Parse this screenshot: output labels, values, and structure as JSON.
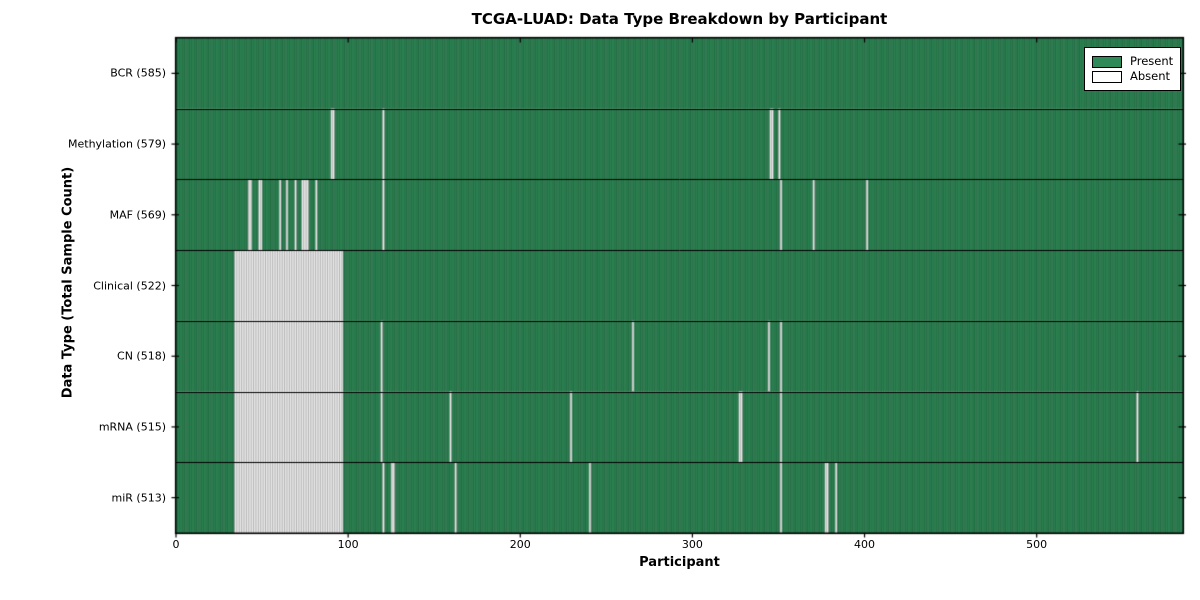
{
  "chart_data": {
    "type": "heatmap",
    "title": "TCGA-LUAD: Data Type Breakdown by Participant",
    "xlabel": "Participant",
    "ylabel": "Data Type (Total Sample Count)",
    "x_ticks": [
      0,
      100,
      200,
      300,
      400,
      500
    ],
    "x_range": [
      0,
      585
    ],
    "n_participants": 585,
    "grid": "off",
    "legend_position": "upper right",
    "legend": [
      {
        "label": "Present",
        "color": "#2E8B57"
      },
      {
        "label": "Absent",
        "color": "#FFFFFF"
      }
    ],
    "rows": [
      {
        "label": "BCR",
        "total": 585,
        "absent_singles": [],
        "absent_ranges": []
      },
      {
        "label": "Methylation",
        "total": 579,
        "absent_singles": [
          90,
          91,
          120,
          345,
          346,
          350
        ],
        "absent_ranges": []
      },
      {
        "label": "MAF",
        "total": 569,
        "absent_singles": [
          42,
          43,
          48,
          49,
          60,
          64,
          69,
          73,
          74,
          75,
          76,
          81,
          120,
          351,
          370,
          401
        ],
        "absent_ranges": []
      },
      {
        "label": "Clinical",
        "total": 522,
        "absent_singles": [],
        "absent_ranges": [
          [
            34,
            96
          ]
        ]
      },
      {
        "label": "CN",
        "total": 518,
        "absent_singles": [
          119,
          265,
          344,
          351
        ],
        "absent_ranges": [
          [
            34,
            96
          ]
        ]
      },
      {
        "label": "mRNA",
        "total": 515,
        "absent_singles": [
          119,
          159,
          229,
          327,
          328,
          351,
          558
        ],
        "absent_ranges": [
          [
            34,
            96
          ]
        ]
      },
      {
        "label": "miR",
        "total": 513,
        "absent_singles": [
          120,
          125,
          126,
          162,
          240,
          351,
          377,
          378,
          383
        ],
        "absent_ranges": [
          [
            34,
            96
          ]
        ]
      }
    ]
  },
  "colors": {
    "present_fill": "#2E8B57",
    "present_edge": "#0d2f1c",
    "absent_fill": "#FFFFFF",
    "absent_edge": "#8C8C8C",
    "frame": "#000000",
    "background": "#FFFFFF"
  }
}
